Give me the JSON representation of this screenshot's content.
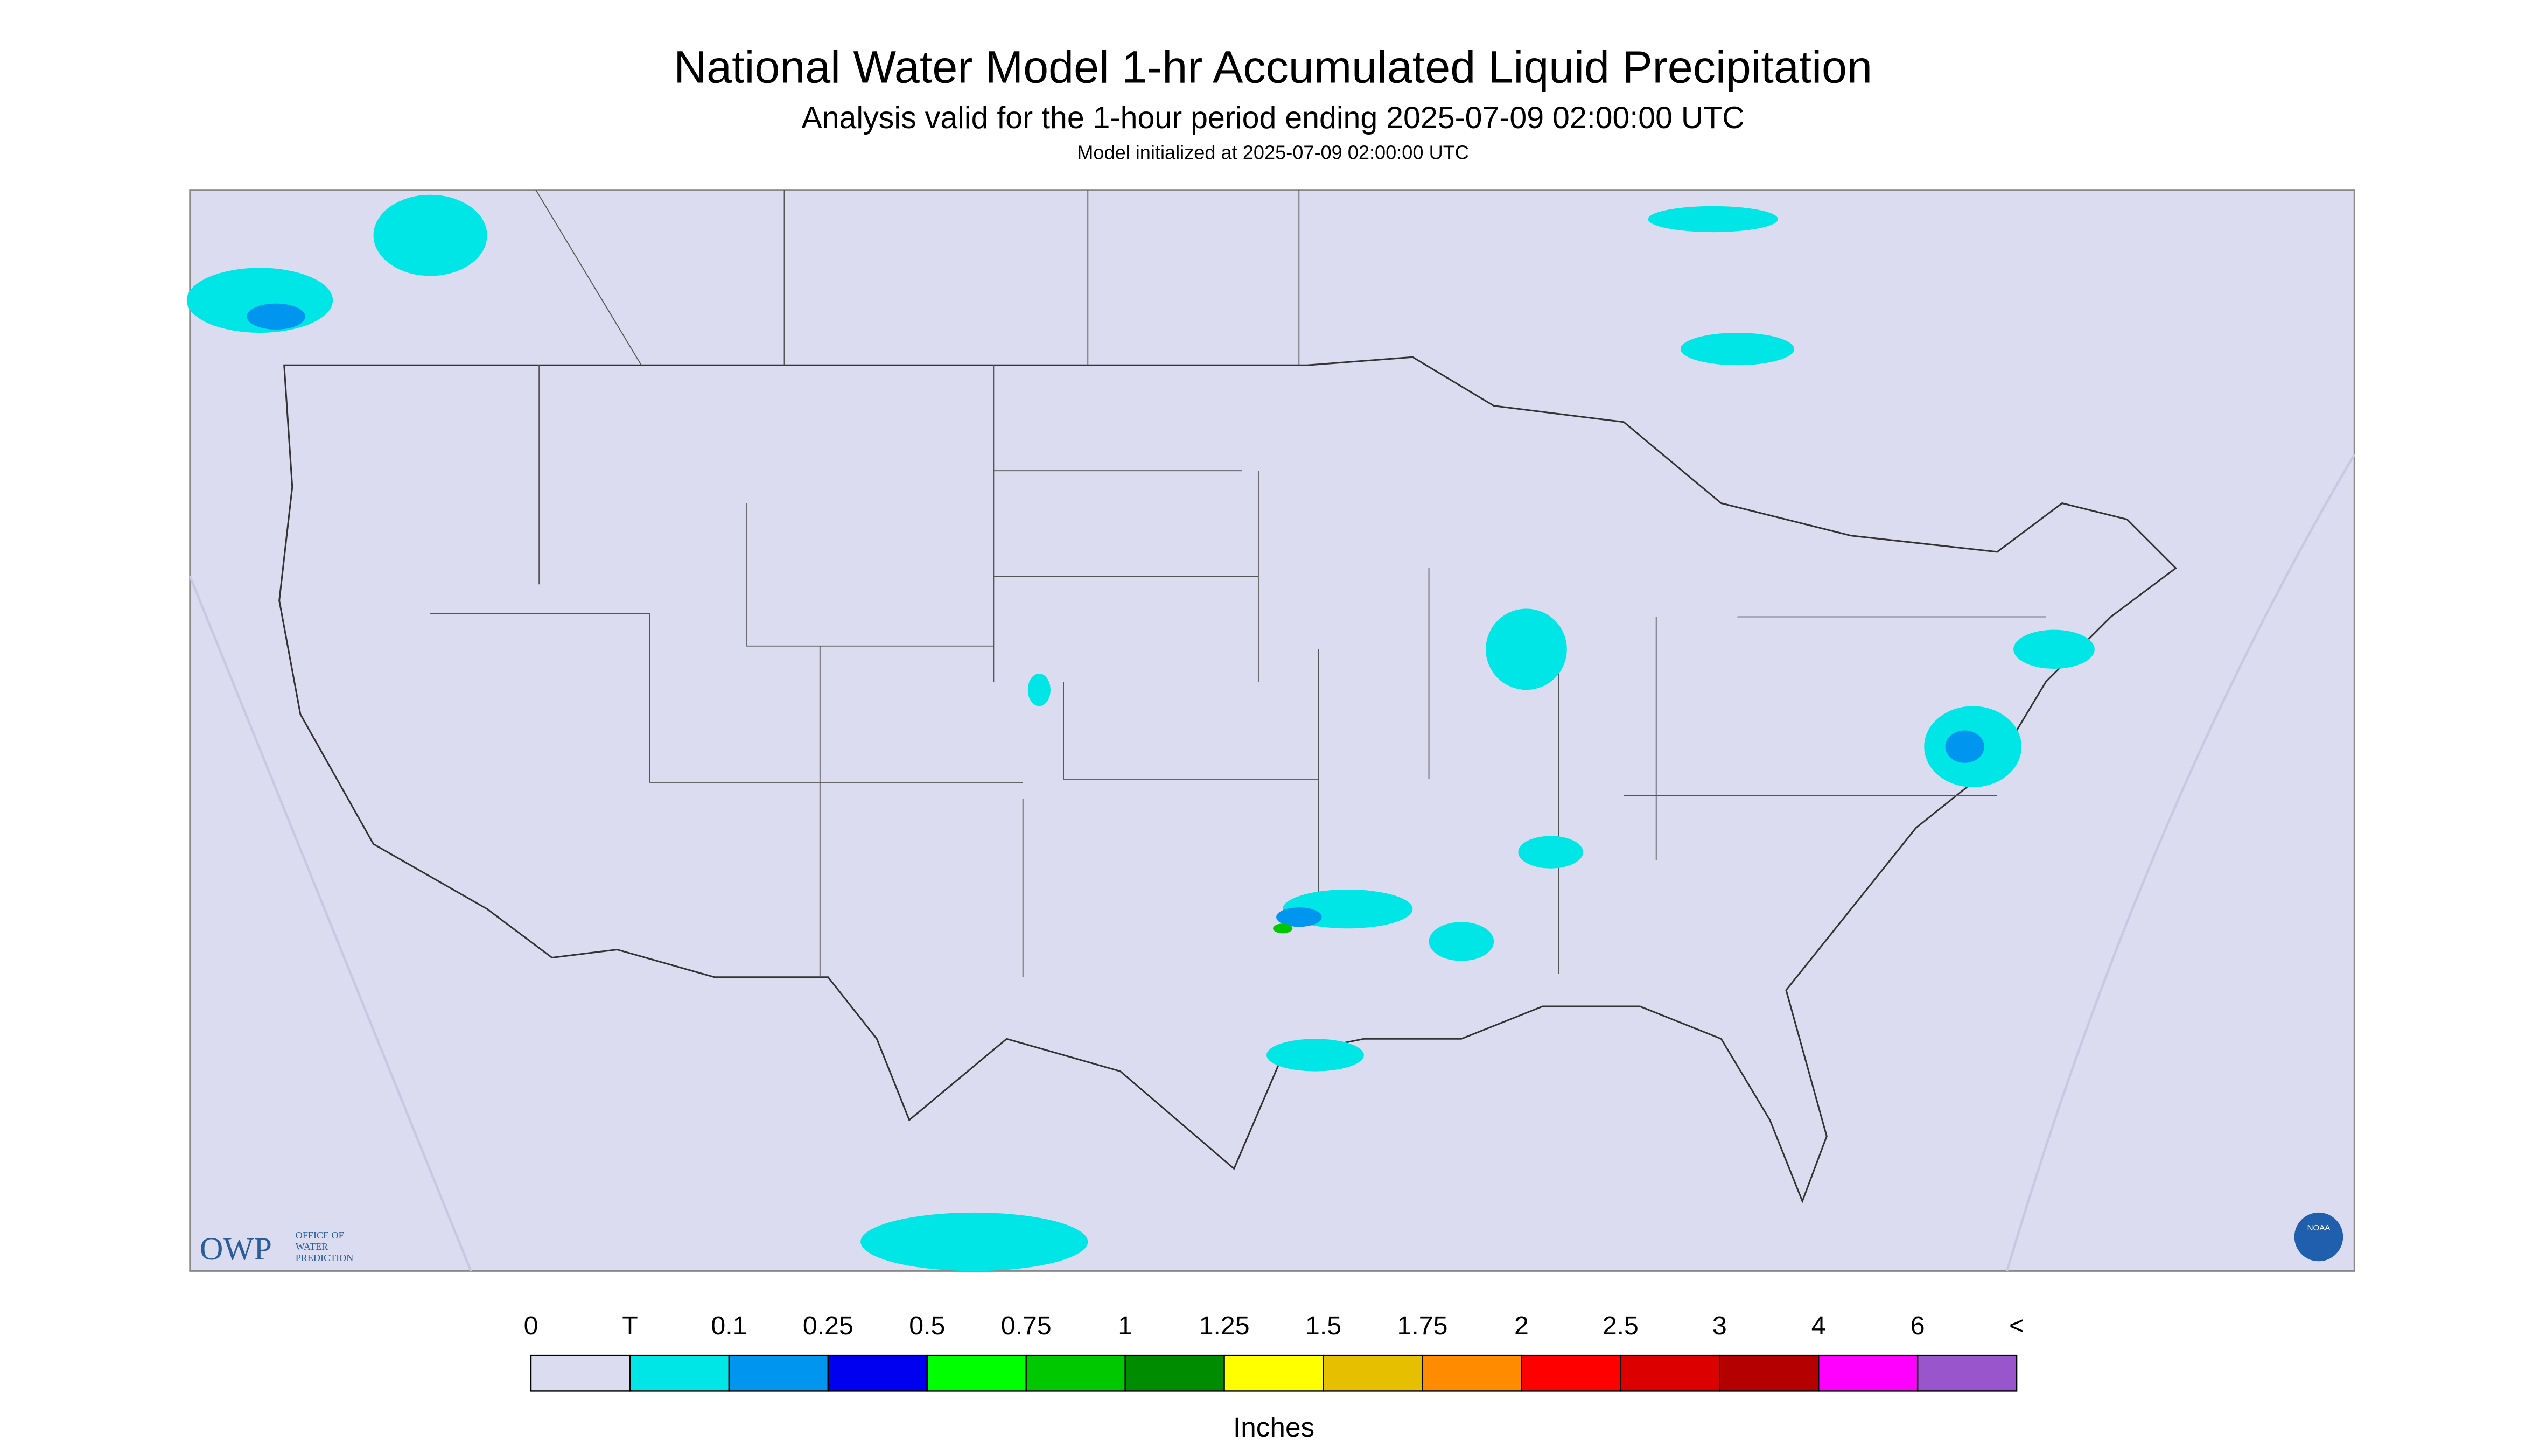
{
  "header": {
    "title": "National Water Model 1-hr Accumulated Liquid Precipitation",
    "subtitle": "Analysis valid for the 1-hour period ending 2025-07-09 02:00:00 UTC",
    "note": "Model initialized at 2025-07-09 02:00:00 UTC"
  },
  "logo": {
    "short": "OWP",
    "line1": "OFFICE OF",
    "line2": "WATER",
    "line3": "PREDICTION",
    "badge": "NOAA"
  },
  "legend": {
    "labels": [
      "0",
      "T",
      "0.1",
      "0.25",
      "0.5",
      "0.75",
      "1",
      "1.25",
      "1.5",
      "1.75",
      "2",
      "2.5",
      "3",
      "4",
      "6",
      "<"
    ],
    "colors": [
      "#dcdcf0",
      "#00e6e6",
      "#0096f0",
      "#0000f0",
      "#00ff00",
      "#00c800",
      "#008c00",
      "#ffff00",
      "#e6c000",
      "#ff8c00",
      "#ff0000",
      "#dc0000",
      "#b40000",
      "#ff00ff",
      "#9955cc"
    ],
    "units": "Inches"
  }
}
